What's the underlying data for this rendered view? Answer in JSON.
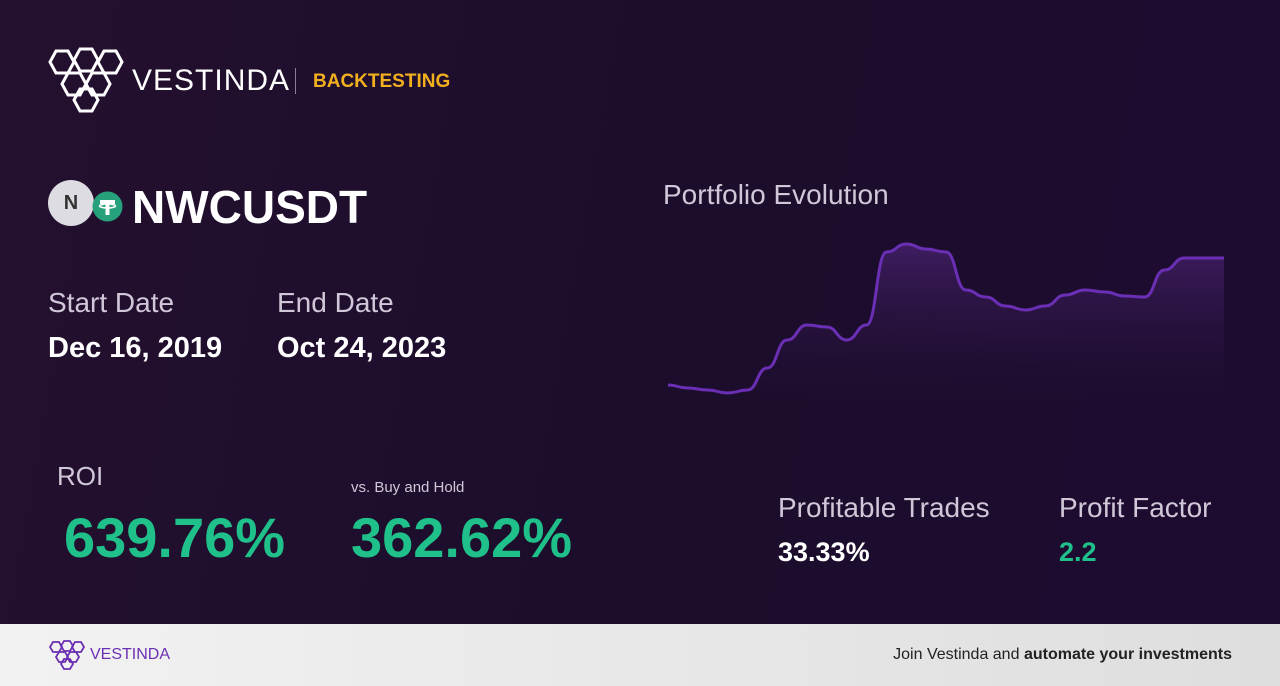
{
  "header": {
    "brand": "VESTINDA",
    "section": "BACKTESTING"
  },
  "pair": {
    "base_icon": "N",
    "symbol": "NWCUSDT"
  },
  "dates": {
    "start_label": "Start Date",
    "start_value": "Dec 16, 2019",
    "end_label": "End Date",
    "end_value": "Oct 24, 2023"
  },
  "roi": {
    "label": "ROI",
    "value": "639.76%"
  },
  "buy_hold": {
    "label": "vs. Buy and Hold",
    "value": "362.62%"
  },
  "profitable_trades": {
    "label": "Profitable Trades",
    "value": "33.33%"
  },
  "profit_factor": {
    "label": "Profit Factor",
    "value": "2.2"
  },
  "portfolio": {
    "title": "Portfolio Evolution",
    "values": [
      15,
      12,
      10,
      7,
      10,
      32,
      60,
      75,
      73,
      60,
      75,
      148,
      156,
      151,
      148,
      110,
      103,
      94,
      90,
      94,
      105,
      110,
      108,
      104,
      103,
      130,
      142,
      142,
      142
    ]
  },
  "footer": {
    "brand": "VESTINDA",
    "cta_prefix": "Join Vestinda and",
    "cta_bold": "automate your investments"
  }
}
